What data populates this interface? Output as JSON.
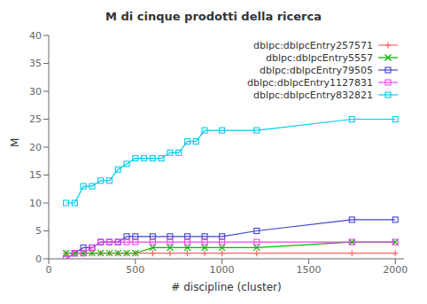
{
  "chart_data": {
    "type": "line",
    "title": "M di cinque prodotti della ricerca",
    "xlabel": "# discipline (cluster)",
    "ylabel": "M",
    "xlim": [
      0,
      2050
    ],
    "ylim": [
      0,
      40
    ],
    "xticks": [
      0,
      500,
      1000,
      1500,
      2000
    ],
    "yticks": [
      0,
      5,
      10,
      15,
      20,
      25,
      30,
      35,
      40
    ],
    "grid": false,
    "legend": "upper right",
    "series": [
      {
        "name": "dblpc:dblpcEntry257571",
        "color": "#ff6666",
        "marker": "plus",
        "x": [
          100,
          150,
          200,
          250,
          300,
          350,
          400,
          450,
          500,
          600,
          700,
          800,
          900,
          1000,
          1200,
          1750,
          2000
        ],
        "values": [
          1,
          1,
          1,
          1,
          1,
          1,
          1,
          1,
          1,
          1,
          1,
          1,
          1,
          1,
          1,
          1,
          1
        ]
      },
      {
        "name": "dblpc:dblpcEntry5557",
        "color": "#00bb00",
        "marker": "cross",
        "x": [
          100,
          150,
          200,
          250,
          300,
          350,
          400,
          450,
          500,
          600,
          700,
          800,
          900,
          1000,
          1200,
          1750,
          2000
        ],
        "values": [
          1,
          1,
          1,
          1,
          1,
          1,
          1,
          1,
          1,
          2,
          2,
          2,
          2,
          2,
          2,
          3,
          3
        ]
      },
      {
        "name": "dblpc:dblpcEntry79505",
        "color": "#4444cc",
        "marker": "square",
        "x": [
          100,
          150,
          200,
          250,
          300,
          350,
          400,
          450,
          500,
          600,
          700,
          800,
          900,
          1000,
          1200,
          1750,
          2000
        ],
        "values": [
          0,
          1,
          2,
          2,
          3,
          3,
          3,
          4,
          4,
          4,
          4,
          4,
          4,
          4,
          5,
          7,
          7
        ]
      },
      {
        "name": "dblpc:dblpcEntry1127831",
        "color": "#ee44ee",
        "marker": "square",
        "x": [
          100,
          150,
          200,
          250,
          300,
          350,
          400,
          450,
          500,
          600,
          700,
          800,
          900,
          1000,
          1200,
          1750,
          2000
        ],
        "values": [
          0,
          1,
          1,
          2,
          3,
          3,
          3,
          3,
          3,
          3,
          3,
          3,
          3,
          3,
          3,
          3,
          3
        ]
      },
      {
        "name": "dblpc:dblpcEntry832821",
        "color": "#00ccee",
        "marker": "square",
        "x": [
          100,
          150,
          200,
          250,
          300,
          350,
          400,
          450,
          500,
          550,
          600,
          650,
          700,
          750,
          800,
          850,
          900,
          1000,
          1200,
          1750,
          2000
        ],
        "values": [
          10,
          10,
          13,
          13,
          14,
          14,
          16,
          17,
          18,
          18,
          18,
          18,
          19,
          19,
          21,
          21,
          23,
          23,
          23,
          25,
          25
        ]
      }
    ]
  }
}
